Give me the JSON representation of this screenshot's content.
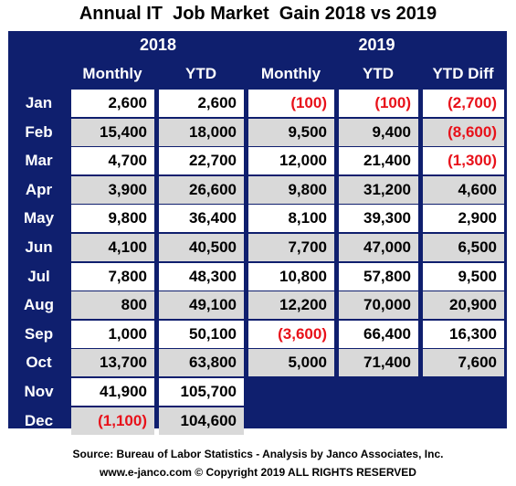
{
  "chart_data": {
    "type": "table",
    "title": "Annual IT  Job Market  Gain 2018 vs 2019",
    "year_headers": [
      "2018",
      "2019"
    ],
    "column_headers": [
      "Monthly",
      "YTD",
      "Monthly",
      "YTD",
      "YTD Diff"
    ],
    "rows": [
      {
        "month": "Jan",
        "cells": [
          "2,600",
          "2,600",
          "(100)",
          "(100)",
          "(2,700)"
        ]
      },
      {
        "month": "Feb",
        "cells": [
          "15,400",
          "18,000",
          "9,500",
          "9,400",
          "(8,600)"
        ]
      },
      {
        "month": "Mar",
        "cells": [
          "4,700",
          "22,700",
          "12,000",
          "21,400",
          "(1,300)"
        ]
      },
      {
        "month": "Apr",
        "cells": [
          "3,900",
          "26,600",
          "9,800",
          "31,200",
          "4,600"
        ]
      },
      {
        "month": "May",
        "cells": [
          "9,800",
          "36,400",
          "8,100",
          "39,300",
          "2,900"
        ]
      },
      {
        "month": "Jun",
        "cells": [
          "4,100",
          "40,500",
          "7,700",
          "47,000",
          "6,500"
        ]
      },
      {
        "month": "Jul",
        "cells": [
          "7,800",
          "48,300",
          "10,800",
          "57,800",
          "9,500"
        ]
      },
      {
        "month": "Aug",
        "cells": [
          "800",
          "49,100",
          "12,200",
          "70,000",
          "20,900"
        ]
      },
      {
        "month": "Sep",
        "cells": [
          "1,000",
          "50,100",
          "(3,600)",
          "66,400",
          "16,300"
        ]
      },
      {
        "month": "Oct",
        "cells": [
          "13,700",
          "63,800",
          "5,000",
          "71,400",
          "7,600"
        ]
      },
      {
        "month": "Nov",
        "cells": [
          "41,900",
          "105,700"
        ]
      },
      {
        "month": "Dec",
        "cells": [
          "(1,100)",
          "104,600"
        ]
      }
    ],
    "colors": {
      "header_background": "#0f1f6e",
      "header_text": "#ffffff",
      "row_light": "#ffffff",
      "row_shaded": "#d9d9d9",
      "negative_text": "#e8111a"
    }
  },
  "footer": {
    "source": "Source: Bureau of Labor Statistics - Analysis by Janco Associates, Inc.",
    "copyright": "www.e-janco.com © Copyright 2019 ALL RIGHTS RESERVED"
  }
}
